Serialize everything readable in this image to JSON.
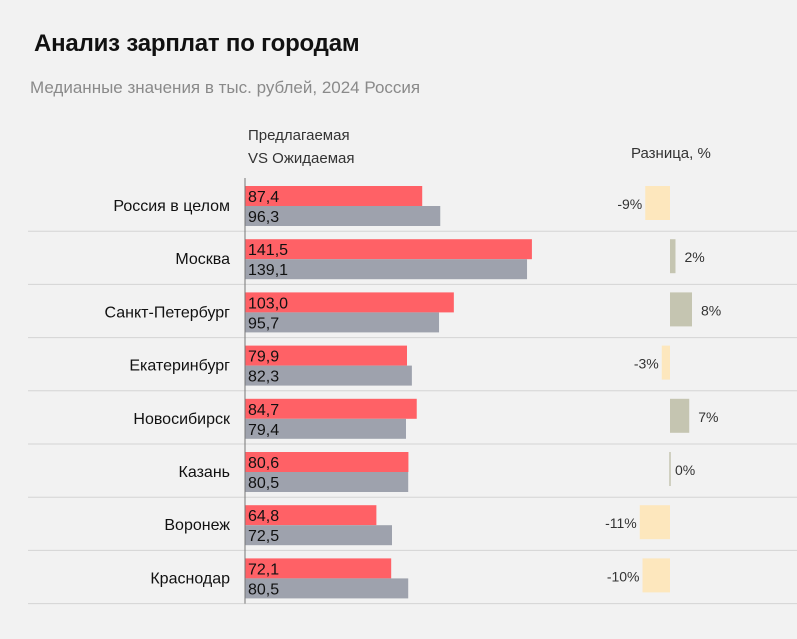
{
  "title": "Анализ зарплат по городам",
  "subtitle": "Медианные значения в тыс. рублей, 2024 Россия",
  "legend": {
    "line1": "Предлагаемая",
    "line2": "VS  Ожидаемая"
  },
  "diff_header": "Разница, %",
  "colors": {
    "offered": "#ff6166",
    "expected": "#9ea2ad",
    "diff_negative": "#fde7bd",
    "diff_positive": "#c5c5b1",
    "row_divider": "#d4d4d4",
    "axis": "#777777"
  },
  "chart_data": {
    "type": "bar",
    "title": "Анализ зарплат по городам",
    "subtitle": "Медианные значения в тыс. рублей, 2024 Россия",
    "orientation": "horizontal",
    "categories": [
      "Россия в целом",
      "Москва",
      "Санкт-Петербург",
      "Екатеринбург",
      "Новосибирск",
      "Казань",
      "Воронеж",
      "Краснодар"
    ],
    "series": [
      {
        "name": "Предлагаемая",
        "values": [
          87.4,
          141.5,
          103.0,
          79.9,
          84.7,
          80.6,
          64.8,
          72.1
        ],
        "labels": [
          "87,4",
          "141,5",
          "103,0",
          "79,9",
          "84,7",
          "80,6",
          "64,8",
          "72,1"
        ]
      },
      {
        "name": "Ожидаемая",
        "values": [
          96.3,
          139.1,
          95.7,
          82.3,
          79.4,
          80.5,
          72.5,
          80.5
        ],
        "labels": [
          "96,3",
          "139,1",
          "95,7",
          "82,3",
          "79,4",
          "80,5",
          "72,5",
          "80,5"
        ]
      }
    ],
    "difference": {
      "name": "Разница, %",
      "values": [
        -9,
        2,
        8,
        -3,
        7,
        0,
        -11,
        -10
      ],
      "labels": [
        "-9%",
        "2%",
        "8%",
        "-3%",
        "7%",
        "0%",
        "-11%",
        "-10%"
      ]
    },
    "xlim": [
      0,
      145
    ]
  }
}
